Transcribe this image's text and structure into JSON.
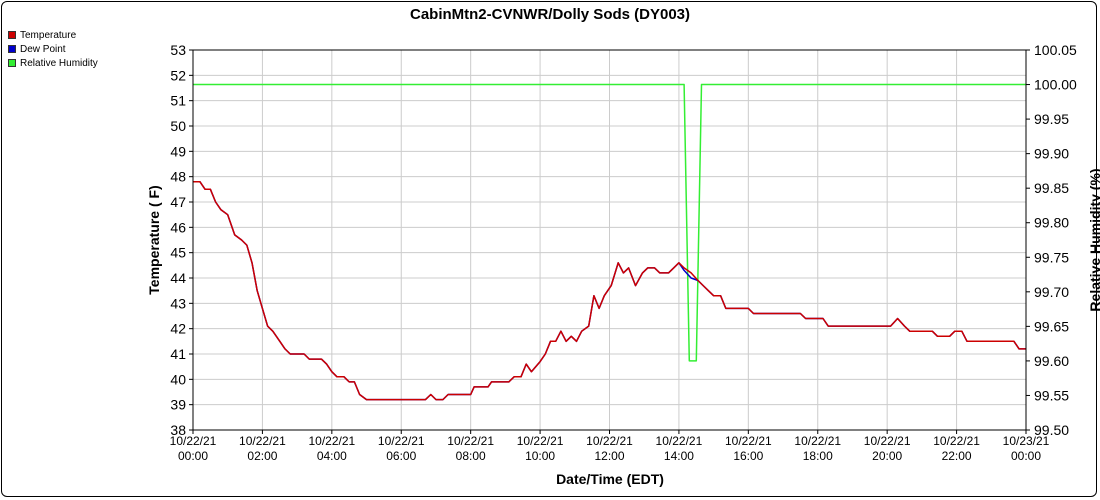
{
  "chart_data": {
    "type": "line",
    "title": "CabinMtn2-CVNWR/Dolly Sods (DY003)",
    "xlabel": "Date/Time (EDT)",
    "ylabel_left": "Temperature ( F)",
    "ylabel_right": "Relative Humidity (%)",
    "xlim_hours": [
      0,
      24
    ],
    "ylim_left": [
      38,
      53
    ],
    "ylim_right": [
      99.5,
      100.05
    ],
    "x_ticks": [
      {
        "h": 0,
        "date": "10/22/21",
        "time": "00:00"
      },
      {
        "h": 2,
        "date": "10/22/21",
        "time": "02:00"
      },
      {
        "h": 4,
        "date": "10/22/21",
        "time": "04:00"
      },
      {
        "h": 6,
        "date": "10/22/21",
        "time": "06:00"
      },
      {
        "h": 8,
        "date": "10/22/21",
        "time": "08:00"
      },
      {
        "h": 10,
        "date": "10/22/21",
        "time": "10:00"
      },
      {
        "h": 12,
        "date": "10/22/21",
        "time": "12:00"
      },
      {
        "h": 14,
        "date": "10/22/21",
        "time": "14:00"
      },
      {
        "h": 16,
        "date": "10/22/21",
        "time": "16:00"
      },
      {
        "h": 18,
        "date": "10/22/21",
        "time": "18:00"
      },
      {
        "h": 20,
        "date": "10/22/21",
        "time": "20:00"
      },
      {
        "h": 22,
        "date": "10/22/21",
        "time": "22:00"
      },
      {
        "h": 24,
        "date": "10/23/21",
        "time": "00:00"
      }
    ],
    "y_ticks_left": [
      "38",
      "39",
      "40",
      "41",
      "42",
      "43",
      "44",
      "45",
      "46",
      "47",
      "48",
      "49",
      "50",
      "51",
      "52",
      "53"
    ],
    "y_ticks_right": [
      "99.50",
      "99.55",
      "99.60",
      "99.65",
      "99.70",
      "99.75",
      "99.80",
      "99.85",
      "99.90",
      "99.95",
      "100.00",
      "100.05"
    ],
    "grid": true,
    "legend_position": "top-left",
    "series": [
      {
        "name": "Temperature",
        "color": "#cc0000",
        "axis": "left",
        "points": [
          [
            0,
            47.8
          ],
          [
            0.2,
            47.8
          ],
          [
            0.35,
            47.5
          ],
          [
            0.5,
            47.5
          ],
          [
            0.65,
            47.0
          ],
          [
            0.8,
            46.7
          ],
          [
            1.0,
            46.5
          ],
          [
            1.2,
            45.7
          ],
          [
            1.4,
            45.5
          ],
          [
            1.55,
            45.3
          ],
          [
            1.7,
            44.6
          ],
          [
            1.85,
            43.5
          ],
          [
            2.0,
            42.8
          ],
          [
            2.15,
            42.1
          ],
          [
            2.3,
            41.9
          ],
          [
            2.5,
            41.5
          ],
          [
            2.65,
            41.2
          ],
          [
            2.8,
            41.0
          ],
          [
            3.2,
            41.0
          ],
          [
            3.35,
            40.8
          ],
          [
            3.7,
            40.8
          ],
          [
            3.85,
            40.6
          ],
          [
            4.0,
            40.3
          ],
          [
            4.15,
            40.1
          ],
          [
            4.35,
            40.1
          ],
          [
            4.5,
            39.9
          ],
          [
            4.65,
            39.9
          ],
          [
            4.8,
            39.4
          ],
          [
            5.0,
            39.2
          ],
          [
            6.7,
            39.2
          ],
          [
            6.85,
            39.4
          ],
          [
            7.0,
            39.2
          ],
          [
            7.2,
            39.2
          ],
          [
            7.35,
            39.4
          ],
          [
            8.0,
            39.4
          ],
          [
            8.1,
            39.7
          ],
          [
            8.5,
            39.7
          ],
          [
            8.6,
            39.9
          ],
          [
            9.1,
            39.9
          ],
          [
            9.25,
            40.1
          ],
          [
            9.45,
            40.1
          ],
          [
            9.6,
            40.6
          ],
          [
            9.75,
            40.3
          ],
          [
            10.0,
            40.7
          ],
          [
            10.15,
            41.0
          ],
          [
            10.3,
            41.5
          ],
          [
            10.45,
            41.5
          ],
          [
            10.6,
            41.9
          ],
          [
            10.75,
            41.5
          ],
          [
            10.9,
            41.7
          ],
          [
            11.05,
            41.5
          ],
          [
            11.2,
            41.9
          ],
          [
            11.4,
            42.1
          ],
          [
            11.55,
            43.3
          ],
          [
            11.7,
            42.8
          ],
          [
            11.85,
            43.3
          ],
          [
            12.05,
            43.7
          ],
          [
            12.25,
            44.6
          ],
          [
            12.4,
            44.2
          ],
          [
            12.55,
            44.4
          ],
          [
            12.75,
            43.7
          ],
          [
            12.95,
            44.2
          ],
          [
            13.1,
            44.4
          ],
          [
            13.3,
            44.4
          ],
          [
            13.45,
            44.2
          ],
          [
            13.7,
            44.2
          ],
          [
            13.85,
            44.4
          ],
          [
            14.0,
            44.6
          ],
          [
            14.15,
            44.4
          ],
          [
            14.35,
            44.2
          ],
          [
            14.55,
            43.9
          ],
          [
            14.7,
            43.7
          ],
          [
            14.85,
            43.5
          ],
          [
            15.0,
            43.3
          ],
          [
            15.2,
            43.3
          ],
          [
            15.35,
            42.8
          ],
          [
            15.5,
            42.8
          ],
          [
            16.0,
            42.8
          ],
          [
            16.15,
            42.6
          ],
          [
            17.0,
            42.6
          ],
          [
            17.5,
            42.6
          ],
          [
            17.65,
            42.4
          ],
          [
            18.15,
            42.4
          ],
          [
            18.3,
            42.1
          ],
          [
            19.0,
            42.1
          ],
          [
            20.1,
            42.1
          ],
          [
            20.3,
            42.4
          ],
          [
            20.5,
            42.1
          ],
          [
            20.65,
            41.9
          ],
          [
            21.3,
            41.9
          ],
          [
            21.45,
            41.7
          ],
          [
            21.8,
            41.7
          ],
          [
            21.95,
            41.9
          ],
          [
            22.15,
            41.9
          ],
          [
            22.3,
            41.5
          ],
          [
            23.0,
            41.5
          ],
          [
            23.65,
            41.5
          ],
          [
            23.8,
            41.2
          ],
          [
            24.0,
            41.2
          ]
        ]
      },
      {
        "name": "Dew Point",
        "color": "#0000cc",
        "axis": "left",
        "points": [
          [
            0,
            47.8
          ],
          [
            0.2,
            47.8
          ],
          [
            0.35,
            47.5
          ],
          [
            0.5,
            47.5
          ],
          [
            0.65,
            47.0
          ],
          [
            0.8,
            46.7
          ],
          [
            1.0,
            46.5
          ],
          [
            1.2,
            45.7
          ],
          [
            1.4,
            45.5
          ],
          [
            1.55,
            45.3
          ],
          [
            1.7,
            44.6
          ],
          [
            1.85,
            43.5
          ],
          [
            2.0,
            42.8
          ],
          [
            2.15,
            42.1
          ],
          [
            2.3,
            41.9
          ],
          [
            2.5,
            41.5
          ],
          [
            2.65,
            41.2
          ],
          [
            2.8,
            41.0
          ],
          [
            3.2,
            41.0
          ],
          [
            3.35,
            40.8
          ],
          [
            3.7,
            40.8
          ],
          [
            3.85,
            40.6
          ],
          [
            4.0,
            40.3
          ],
          [
            4.15,
            40.1
          ],
          [
            4.35,
            40.1
          ],
          [
            4.5,
            39.9
          ],
          [
            4.65,
            39.9
          ],
          [
            4.8,
            39.4
          ],
          [
            5.0,
            39.2
          ],
          [
            6.7,
            39.2
          ],
          [
            6.85,
            39.4
          ],
          [
            7.0,
            39.2
          ],
          [
            7.2,
            39.2
          ],
          [
            7.35,
            39.4
          ],
          [
            8.0,
            39.4
          ],
          [
            8.1,
            39.7
          ],
          [
            8.5,
            39.7
          ],
          [
            8.6,
            39.9
          ],
          [
            9.1,
            39.9
          ],
          [
            9.25,
            40.1
          ],
          [
            9.45,
            40.1
          ],
          [
            9.6,
            40.6
          ],
          [
            9.75,
            40.3
          ],
          [
            10.0,
            40.7
          ],
          [
            10.15,
            41.0
          ],
          [
            10.3,
            41.5
          ],
          [
            10.45,
            41.5
          ],
          [
            10.6,
            41.9
          ],
          [
            10.75,
            41.5
          ],
          [
            10.9,
            41.7
          ],
          [
            11.05,
            41.5
          ],
          [
            11.2,
            41.9
          ],
          [
            11.4,
            42.1
          ],
          [
            11.55,
            43.3
          ],
          [
            11.7,
            42.8
          ],
          [
            11.85,
            43.3
          ],
          [
            12.05,
            43.7
          ],
          [
            12.25,
            44.6
          ],
          [
            12.4,
            44.2
          ],
          [
            12.55,
            44.4
          ],
          [
            12.75,
            43.7
          ],
          [
            12.95,
            44.2
          ],
          [
            13.1,
            44.4
          ],
          [
            13.3,
            44.4
          ],
          [
            13.45,
            44.2
          ],
          [
            13.7,
            44.2
          ],
          [
            13.85,
            44.4
          ],
          [
            14.0,
            44.6
          ],
          [
            14.15,
            44.3
          ],
          [
            14.35,
            44.0
          ],
          [
            14.55,
            43.9
          ],
          [
            14.7,
            43.7
          ],
          [
            14.85,
            43.5
          ],
          [
            15.0,
            43.3
          ],
          [
            15.2,
            43.3
          ],
          [
            15.35,
            42.8
          ],
          [
            15.5,
            42.8
          ],
          [
            16.0,
            42.8
          ],
          [
            16.15,
            42.6
          ],
          [
            17.0,
            42.6
          ],
          [
            17.5,
            42.6
          ],
          [
            17.65,
            42.4
          ],
          [
            18.15,
            42.4
          ],
          [
            18.3,
            42.1
          ],
          [
            19.0,
            42.1
          ],
          [
            20.1,
            42.1
          ],
          [
            20.3,
            42.4
          ],
          [
            20.5,
            42.1
          ],
          [
            20.65,
            41.9
          ],
          [
            21.3,
            41.9
          ],
          [
            21.45,
            41.7
          ],
          [
            21.8,
            41.7
          ],
          [
            21.95,
            41.9
          ],
          [
            22.15,
            41.9
          ],
          [
            22.3,
            41.5
          ],
          [
            23.0,
            41.5
          ],
          [
            23.65,
            41.5
          ],
          [
            23.8,
            41.2
          ],
          [
            24.0,
            41.2
          ]
        ]
      },
      {
        "name": "Relative Humidity",
        "color": "#33ee33",
        "axis": "right",
        "points": [
          [
            0,
            100.0
          ],
          [
            14.15,
            100.0
          ],
          [
            14.3,
            99.6
          ],
          [
            14.5,
            99.6
          ],
          [
            14.65,
            100.0
          ],
          [
            24.0,
            100.0
          ]
        ]
      }
    ]
  }
}
